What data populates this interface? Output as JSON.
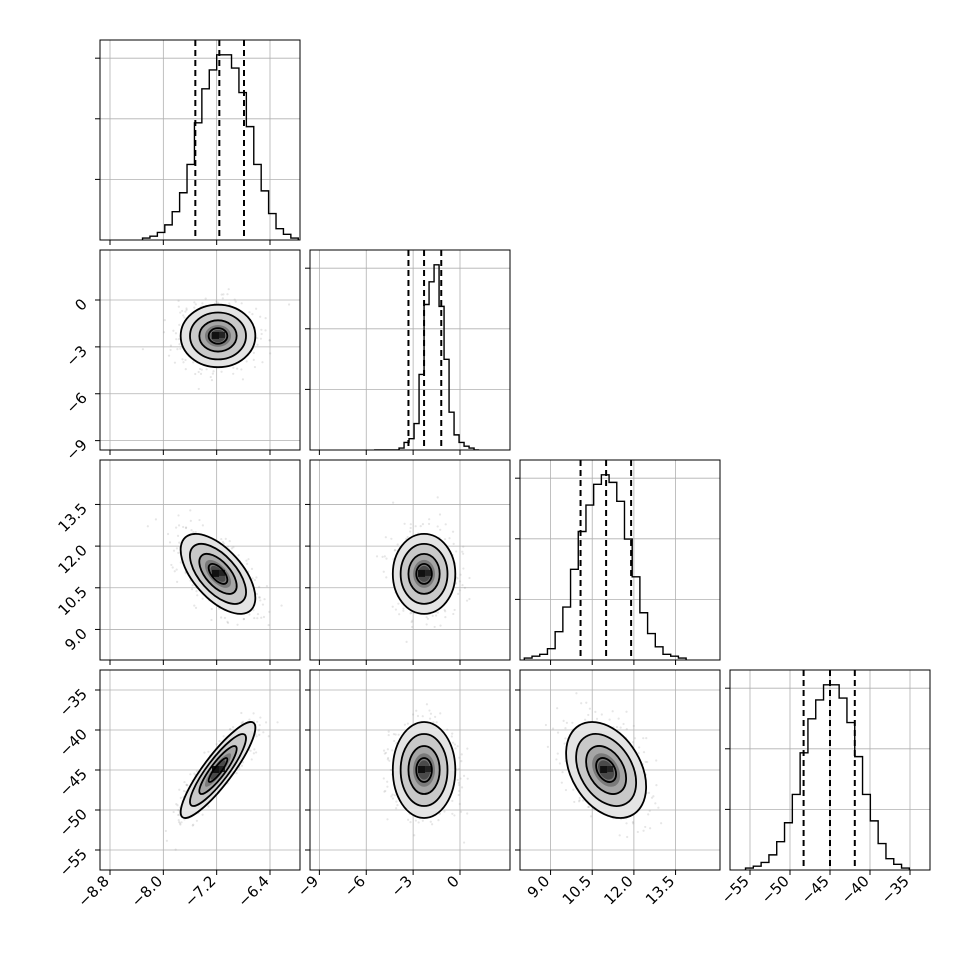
{
  "chart_data": {
    "type": "corner",
    "title": "",
    "parameters": [
      {
        "range": [
          -8.95,
          -5.95
        ],
        "ticks": [
          -8.8,
          -8.0,
          -7.2,
          -6.4
        ],
        "tick_labels": [
          "−8.8",
          "−8.0",
          "−7.2",
          "−6.4"
        ],
        "quantiles": [
          -7.52,
          -7.16,
          -6.79
        ],
        "histogram": [
          1,
          2,
          4,
          8,
          15,
          25,
          40,
          62,
          80,
          90,
          98,
          98,
          91,
          78,
          60,
          40,
          26,
          14,
          6,
          3,
          1
        ]
      },
      {
        "range": [
          -9.6,
          3.2
        ],
        "ticks": [
          -9,
          -6,
          -3,
          0
        ],
        "tick_labels": [
          "−9",
          "−6",
          "−3",
          "0"
        ],
        "quantiles": [
          -3.3,
          -2.3,
          -1.2
        ],
        "histogram": [
          0,
          0,
          0,
          0,
          0,
          1,
          4,
          6,
          14,
          40,
          77,
          89,
          98,
          76,
          48,
          20,
          8,
          4,
          2,
          1,
          0
        ]
      },
      {
        "range": [
          7.9,
          15.1
        ],
        "ticks": [
          9.0,
          10.5,
          12.0,
          13.5
        ],
        "tick_labels": [
          "9.0",
          "10.5",
          "12.0",
          "13.5"
        ],
        "quantiles": [
          10.08,
          11.0,
          11.9
        ],
        "histogram": [
          1,
          2,
          3,
          6,
          15,
          28,
          48,
          68,
          82,
          93,
          98,
          94,
          84,
          64,
          44,
          25,
          14,
          7,
          3,
          2,
          1
        ]
      },
      {
        "range": [
          -57.5,
          -32.5
        ],
        "ticks": [
          -55,
          -50,
          -45,
          -40,
          -35
        ],
        "tick_labels": [
          "−55",
          "−50",
          "−45",
          "−40",
          "−35"
        ],
        "quantiles": [
          -48.3,
          -45.0,
          -41.9
        ],
        "histogram": [
          1,
          2,
          4,
          8,
          15,
          25,
          40,
          62,
          80,
          90,
          98,
          98,
          91,
          78,
          60,
          40,
          26,
          14,
          6,
          3,
          1
        ]
      }
    ],
    "pairs": [
      {
        "row": 1,
        "col": 0,
        "mean": [
          -7.18,
          -2.3
        ],
        "std": [
          0.28,
          1.0
        ],
        "corr": 0.0
      },
      {
        "row": 2,
        "col": 0,
        "mean": [
          -7.18,
          11.0
        ],
        "std": [
          0.28,
          0.72
        ],
        "corr": -0.6
      },
      {
        "row": 2,
        "col": 1,
        "mean": [
          -2.3,
          11.0
        ],
        "std": [
          1.0,
          0.72
        ],
        "corr": 0.0
      },
      {
        "row": 3,
        "col": 0,
        "mean": [
          -7.18,
          -45.0
        ],
        "std": [
          0.28,
          3.0
        ],
        "corr": 0.88
      },
      {
        "row": 3,
        "col": 1,
        "mean": [
          -2.3,
          -45.0
        ],
        "std": [
          1.0,
          3.0
        ],
        "corr": 0.0
      },
      {
        "row": 3,
        "col": 2,
        "mean": [
          11.0,
          -45.0
        ],
        "std": [
          0.72,
          3.0
        ],
        "corr": -0.35
      }
    ],
    "contour_levels_sigma": [
      0.5,
      1.0,
      1.5,
      2.0
    ],
    "grid": true,
    "legend": "none"
  }
}
